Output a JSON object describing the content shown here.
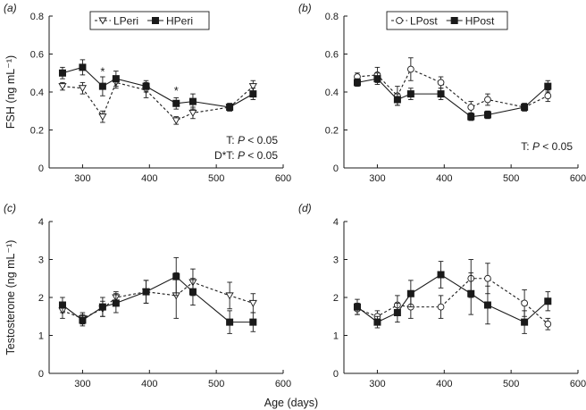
{
  "x_axis_label": "Age (days)",
  "chart_data": [
    {
      "panel": "(a)",
      "type": "line",
      "ylabel": "FSH (ng mL⁻¹)",
      "xlim": [
        250,
        600
      ],
      "ylim": [
        0,
        0.8
      ],
      "x_ticks": [
        300,
        400,
        500,
        600
      ],
      "y_ticks": [
        0,
        0.2,
        0.4,
        0.6,
        0.8
      ],
      "y_tick_labels": [
        "0",
        "0.2",
        "0.4",
        "0.6",
        "0.8"
      ],
      "legend_position": "top",
      "series": [
        {
          "name": "LPeri",
          "style": "dashed",
          "marker": "triangle-down-open",
          "x": [
            270,
            300,
            330,
            350,
            395,
            440,
            465,
            520,
            555
          ],
          "y": [
            0.43,
            0.42,
            0.27,
            0.45,
            0.41,
            0.25,
            0.29,
            0.32,
            0.43
          ],
          "err": [
            0.02,
            0.03,
            0.03,
            0.03,
            0.04,
            0.02,
            0.03,
            0.02,
            0.03
          ]
        },
        {
          "name": "HPeri",
          "style": "solid",
          "marker": "square-filled",
          "x": [
            270,
            300,
            330,
            350,
            395,
            440,
            465,
            520,
            555
          ],
          "y": [
            0.5,
            0.53,
            0.43,
            0.47,
            0.43,
            0.34,
            0.35,
            0.32,
            0.39
          ],
          "err": [
            0.03,
            0.04,
            0.05,
            0.04,
            0.03,
            0.03,
            0.04,
            0.02,
            0.03
          ]
        }
      ],
      "asterisks": [
        {
          "x": 330,
          "y": 0.51,
          "label": "*"
        },
        {
          "x": 440,
          "y": 0.41,
          "label": "*"
        }
      ],
      "annotations": [
        {
          "text": "T: P < 0.05",
          "parts": [
            "T: ",
            "P",
            " < 0.05"
          ]
        },
        {
          "text": "D*T: P < 0.05",
          "parts": [
            "D*T: ",
            "P",
            " < 0.05"
          ]
        }
      ]
    },
    {
      "panel": "(b)",
      "type": "line",
      "ylabel": "",
      "xlim": [
        250,
        600
      ],
      "ylim": [
        0,
        0.8
      ],
      "x_ticks": [
        300,
        400,
        500,
        600
      ],
      "y_ticks": [
        0,
        0.2,
        0.4,
        0.6,
        0.8
      ],
      "y_tick_labels": [
        "0",
        "0.2",
        "0.4",
        "0.6",
        "0.8"
      ],
      "legend_position": "top",
      "series": [
        {
          "name": "LPost",
          "style": "dashed",
          "marker": "circle-open",
          "x": [
            270,
            300,
            330,
            350,
            395,
            440,
            465,
            520,
            555
          ],
          "y": [
            0.48,
            0.49,
            0.38,
            0.52,
            0.45,
            0.32,
            0.36,
            0.32,
            0.38
          ],
          "err": [
            0.02,
            0.04,
            0.05,
            0.06,
            0.03,
            0.03,
            0.03,
            0.02,
            0.03
          ]
        },
        {
          "name": "HPost",
          "style": "solid",
          "marker": "square-filled",
          "x": [
            270,
            300,
            330,
            350,
            395,
            440,
            465,
            520,
            555
          ],
          "y": [
            0.45,
            0.47,
            0.36,
            0.39,
            0.39,
            0.27,
            0.28,
            0.32,
            0.43
          ],
          "err": [
            0.02,
            0.03,
            0.03,
            0.03,
            0.03,
            0.02,
            0.02,
            0.02,
            0.03
          ]
        }
      ],
      "asterisks": [],
      "annotations": [
        {
          "text": "T: P < 0.05",
          "parts": [
            "T: ",
            "P",
            " < 0.05"
          ]
        }
      ]
    },
    {
      "panel": "(c)",
      "type": "line",
      "ylabel": "Testosterone (ng mL⁻¹)",
      "xlim": [
        250,
        600
      ],
      "ylim": [
        0,
        4
      ],
      "x_ticks": [
        300,
        400,
        500,
        600
      ],
      "y_ticks": [
        0,
        1,
        2,
        3,
        4
      ],
      "y_tick_labels": [
        "0",
        "1",
        "2",
        "3",
        "4"
      ],
      "legend_position": "none",
      "series": [
        {
          "name": "LPeri",
          "style": "dashed",
          "marker": "triangle-down-open",
          "x": [
            270,
            300,
            330,
            350,
            395,
            440,
            465,
            520,
            555
          ],
          "y": [
            1.65,
            1.45,
            1.7,
            2.0,
            2.15,
            2.05,
            2.4,
            2.05,
            1.85
          ],
          "err": [
            0.2,
            0.15,
            0.2,
            0.15,
            0.3,
            0.6,
            0.35,
            0.35,
            0.25
          ]
        },
        {
          "name": "HPeri",
          "style": "solid",
          "marker": "square-filled",
          "x": [
            270,
            300,
            330,
            350,
            395,
            440,
            465,
            520,
            555
          ],
          "y": [
            1.8,
            1.4,
            1.75,
            1.85,
            2.15,
            2.55,
            2.15,
            1.35,
            1.35
          ],
          "err": [
            0.2,
            0.15,
            0.25,
            0.25,
            0.3,
            0.5,
            0.35,
            0.3,
            0.25
          ]
        }
      ],
      "asterisks": [],
      "annotations": []
    },
    {
      "panel": "(d)",
      "type": "line",
      "ylabel": "",
      "xlim": [
        250,
        600
      ],
      "ylim": [
        0,
        4
      ],
      "x_ticks": [
        300,
        400,
        500,
        600
      ],
      "y_ticks": [
        0,
        1,
        2,
        3,
        4
      ],
      "y_tick_labels": [
        "0",
        "1",
        "2",
        "3",
        "4"
      ],
      "legend_position": "none",
      "series": [
        {
          "name": "LPost",
          "style": "dashed",
          "marker": "circle-open",
          "x": [
            270,
            300,
            330,
            350,
            395,
            440,
            465,
            520,
            555
          ],
          "y": [
            1.7,
            1.5,
            1.8,
            1.75,
            1.75,
            2.5,
            2.5,
            1.85,
            1.3
          ],
          "err": [
            0.15,
            0.15,
            0.25,
            0.3,
            0.3,
            0.5,
            0.4,
            0.35,
            0.15
          ]
        },
        {
          "name": "HPost",
          "style": "solid",
          "marker": "square-filled",
          "x": [
            270,
            300,
            330,
            350,
            395,
            440,
            465,
            520,
            555
          ],
          "y": [
            1.75,
            1.35,
            1.6,
            2.1,
            2.6,
            2.1,
            1.8,
            1.35,
            1.9
          ],
          "err": [
            0.2,
            0.15,
            0.25,
            0.35,
            0.35,
            0.55,
            0.5,
            0.3,
            0.25
          ]
        }
      ],
      "asterisks": [],
      "annotations": []
    }
  ]
}
